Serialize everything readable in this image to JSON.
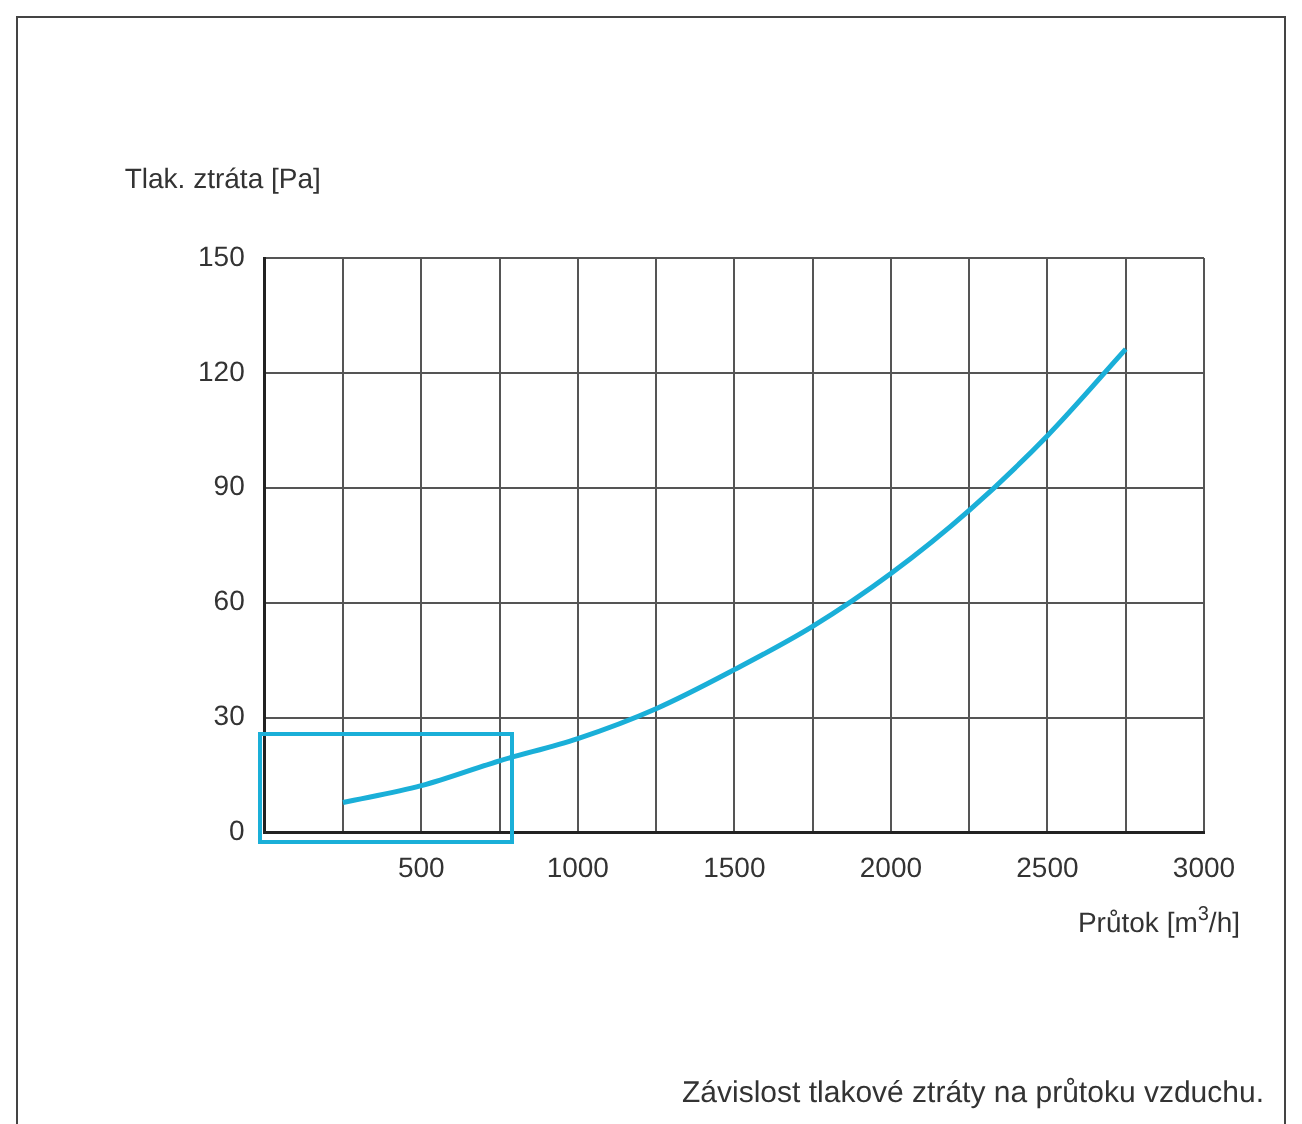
{
  "chart_data": {
    "type": "line",
    "xlabel": "Průtok [m$^{3}$/h]",
    "ylabel": "Tlak. ztráta [Pa]",
    "annotations": [
      "Závislost tlakové ztráty na průtoku vzduchu."
    ],
    "x": [
      250,
      500,
      750,
      1000,
      1250,
      1500,
      1750,
      2000,
      2250,
      2500,
      2750
    ],
    "series": [
      {
        "color": "#1aafd8",
        "values": [
          7.8,
          12.2,
          18.7,
          24.5,
          32.3,
          42.5,
          53.8,
          67.6,
          84.1,
          103.6,
          126.2
        ]
      }
    ],
    "xlim": [
      0,
      3000
    ],
    "ylim": [
      0,
      150
    ],
    "xticks": [
      {
        "value": 0,
        "label": null
      },
      {
        "value": 250,
        "label": null
      },
      500,
      {
        "value": 750,
        "label": null
      },
      1000,
      {
        "value": 1250,
        "label": null
      },
      1500,
      {
        "value": 1750,
        "label": null
      },
      2000,
      {
        "value": 2250,
        "label": null
      },
      2500,
      {
        "value": 2750,
        "label": null
      },
      3000
    ],
    "yticks": [
      0,
      30,
      60,
      90,
      120,
      150
    ],
    "grid": true,
    "legend": false,
    "marker": "none",
    "line_style": "solid"
  }
}
